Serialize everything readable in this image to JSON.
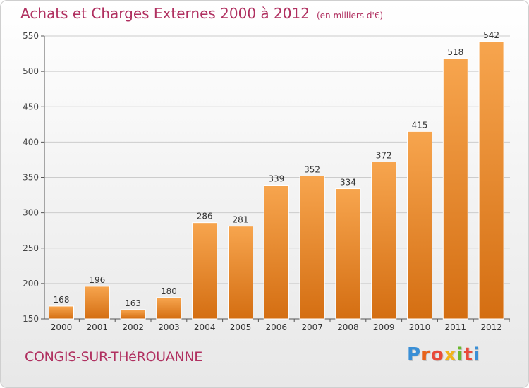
{
  "title": "Achats et Charges Externes 2000 à 2012",
  "unit": "(en milliers d'€)",
  "commune": "CONGIS-SUR-THéROUANNE",
  "logo": {
    "letters": [
      "P",
      "r",
      "o",
      "x",
      "i",
      "t",
      "i"
    ],
    "colors": [
      "#3a8fd6",
      "#e8631a",
      "#e84a3a",
      "#f2b31c",
      "#6ab82e",
      "#e84a3a",
      "#3a8fd6"
    ]
  },
  "colors": {
    "accent": "#b03060",
    "bar_light": "#f7a54e",
    "bar_dark": "#d46e12",
    "grid": "#cccccc"
  },
  "chart_data": {
    "type": "bar",
    "categories": [
      "2000",
      "2001",
      "2002",
      "2003",
      "2004",
      "2005",
      "2006",
      "2007",
      "2008",
      "2009",
      "2010",
      "2011",
      "2012"
    ],
    "values": [
      168,
      196,
      163,
      180,
      286,
      281,
      339,
      352,
      334,
      372,
      415,
      518,
      542
    ],
    "yticks": [
      150,
      200,
      250,
      300,
      350,
      400,
      450,
      500,
      550
    ],
    "ylim": [
      150,
      550
    ],
    "grid": true
  }
}
